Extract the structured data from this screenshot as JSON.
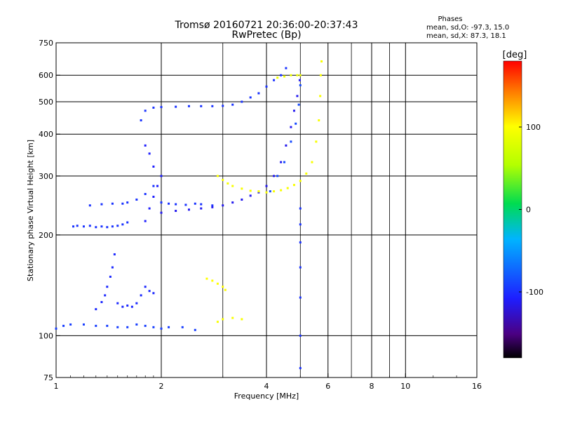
{
  "chart_data": {
    "type": "scatter",
    "title": "Tromsø 20160721 20:36:00-20:37:43",
    "subtitle": "RwPretec (Bp)",
    "xlabel": "Frequency [MHz]",
    "ylabel": "Stationary phase Virtual Height [km]",
    "x_scale": "log",
    "y_scale": "log",
    "xlim": [
      1,
      16
    ],
    "ylim": [
      75,
      750
    ],
    "x_ticks": [
      1,
      2,
      4,
      6,
      8,
      10,
      16
    ],
    "x_tick_labels": [
      "1",
      "2",
      "4",
      "6",
      "8",
      "10",
      "16"
    ],
    "x_minor_lines": [
      3,
      5,
      7,
      9
    ],
    "y_ticks": [
      75,
      100,
      200,
      300,
      400,
      500,
      600,
      750
    ],
    "y_tick_labels": [
      "75",
      "100",
      "200",
      "300",
      "400",
      "500",
      "600",
      "750"
    ],
    "grid": true,
    "legend": {
      "title": "Phases",
      "lines": [
        "mean, sd,O: -97.3, 15.0",
        "mean, sd,X:  87.3, 18.1"
      ]
    },
    "colorbar": {
      "label": "[deg]",
      "min": -180,
      "max": 180,
      "ticks": [
        100,
        0,
        -100
      ],
      "tick_labels": [
        "100",
        "0",
        "-100"
      ]
    },
    "series": [
      {
        "name": "O",
        "mean_phase": -97.3,
        "sd_phase": 15.0,
        "traces": [
          {
            "phase": -95,
            "points": [
              [
                1.0,
                105
              ],
              [
                1.05,
                107
              ],
              [
                1.1,
                108
              ],
              [
                1.2,
                108
              ],
              [
                1.3,
                107
              ],
              [
                1.4,
                107
              ],
              [
                1.5,
                106
              ],
              [
                1.6,
                106
              ],
              [
                1.7,
                108
              ],
              [
                1.8,
                107
              ],
              [
                1.9,
                106
              ],
              [
                2.0,
                105
              ],
              [
                2.1,
                106
              ],
              [
                2.3,
                106
              ],
              [
                2.5,
                104
              ]
            ]
          },
          {
            "phase": -100,
            "points": [
              [
                1.12,
                212
              ],
              [
                1.15,
                213
              ],
              [
                1.2,
                212
              ],
              [
                1.25,
                213
              ],
              [
                1.3,
                211
              ],
              [
                1.35,
                212
              ],
              [
                1.4,
                211
              ],
              [
                1.45,
                212
              ],
              [
                1.5,
                213
              ],
              [
                1.55,
                215
              ],
              [
                1.6,
                218
              ]
            ]
          },
          {
            "phase": -105,
            "points": [
              [
                1.3,
                120
              ],
              [
                1.35,
                126
              ],
              [
                1.38,
                132
              ],
              [
                1.4,
                140
              ],
              [
                1.43,
                150
              ],
              [
                1.45,
                160
              ],
              [
                1.47,
                175
              ],
              [
                1.5,
                125
              ],
              [
                1.55,
                122
              ],
              [
                1.6,
                123
              ],
              [
                1.65,
                122
              ],
              [
                1.7,
                125
              ],
              [
                1.75,
                132
              ],
              [
                1.8,
                140
              ],
              [
                1.85,
                136
              ],
              [
                1.9,
                134
              ]
            ]
          },
          {
            "phase": -100,
            "points": [
              [
                1.25,
                245
              ],
              [
                1.35,
                247
              ],
              [
                1.45,
                248
              ],
              [
                1.55,
                248
              ],
              [
                1.6,
                250
              ],
              [
                1.7,
                255
              ],
              [
                1.8,
                265
              ],
              [
                1.9,
                280
              ],
              [
                2.0,
                250
              ],
              [
                2.1,
                248
              ],
              [
                2.2,
                247
              ],
              [
                2.35,
                246
              ],
              [
                2.5,
                248
              ],
              [
                2.6,
                247
              ],
              [
                2.8,
                245
              ]
            ]
          },
          {
            "phase": -110,
            "points": [
              [
                1.8,
                220
              ],
              [
                1.85,
                240
              ],
              [
                1.9,
                260
              ],
              [
                1.95,
                280
              ],
              [
                2.0,
                300
              ],
              [
                1.9,
                320
              ],
              [
                1.85,
                350
              ],
              [
                1.8,
                370
              ]
            ]
          },
          {
            "phase": -100,
            "points": [
              [
                1.75,
                440
              ],
              [
                1.8,
                470
              ],
              [
                1.9,
                480
              ],
              [
                2.0,
                482
              ],
              [
                2.2,
                483
              ],
              [
                2.4,
                485
              ],
              [
                2.6,
                485
              ],
              [
                2.8,
                485
              ],
              [
                3.0,
                486
              ],
              [
                3.2,
                490
              ],
              [
                3.4,
                500
              ],
              [
                3.6,
                515
              ],
              [
                3.8,
                530
              ],
              [
                4.0,
                555
              ],
              [
                4.2,
                580
              ],
              [
                4.4,
                600
              ],
              [
                4.55,
                630
              ]
            ]
          },
          {
            "phase": -115,
            "points": [
              [
                2.0,
                233
              ],
              [
                2.2,
                236
              ],
              [
                2.4,
                238
              ],
              [
                2.6,
                240
              ],
              [
                2.8,
                242
              ],
              [
                3.0,
                245
              ],
              [
                3.2,
                250
              ],
              [
                3.4,
                255
              ],
              [
                3.6,
                262
              ],
              [
                3.8,
                268
              ],
              [
                4.0,
                280
              ],
              [
                4.2,
                300
              ],
              [
                4.4,
                330
              ],
              [
                4.55,
                370
              ],
              [
                4.7,
                420
              ],
              [
                4.8,
                470
              ],
              [
                4.9,
                520
              ],
              [
                4.98,
                580
              ]
            ]
          },
          {
            "phase": -90,
            "points": [
              [
                4.1,
                270
              ],
              [
                4.3,
                300
              ],
              [
                4.5,
                330
              ],
              [
                4.7,
                380
              ],
              [
                4.85,
                430
              ],
              [
                4.95,
                490
              ],
              [
                5.0,
                560
              ]
            ]
          },
          {
            "phase": -100,
            "points": [
              [
                5.0,
                80
              ],
              [
                5.0,
                100
              ],
              [
                5.0,
                130
              ],
              [
                5.0,
                160
              ],
              [
                5.0,
                190
              ],
              [
                5.0,
                215
              ],
              [
                5.0,
                240
              ]
            ]
          }
        ]
      },
      {
        "name": "X",
        "mean_phase": 87.3,
        "sd_phase": 18.1,
        "traces": [
          {
            "phase": 95,
            "points": [
              [
                2.9,
                300
              ],
              [
                3.0,
                292
              ],
              [
                3.1,
                285
              ],
              [
                3.2,
                280
              ],
              [
                3.4,
                275
              ],
              [
                3.6,
                271
              ],
              [
                3.8,
                270
              ],
              [
                4.0,
                268
              ],
              [
                4.2,
                270
              ],
              [
                4.4,
                272
              ],
              [
                4.6,
                276
              ],
              [
                4.8,
                282
              ],
              [
                5.0,
                290
              ],
              [
                5.2,
                305
              ],
              [
                5.4,
                330
              ],
              [
                5.55,
                380
              ],
              [
                5.65,
                440
              ],
              [
                5.7,
                520
              ],
              [
                5.72,
                600
              ],
              [
                5.75,
                660
              ]
            ]
          },
          {
            "phase": 100,
            "points": [
              [
                2.7,
                148
              ],
              [
                2.8,
                146
              ],
              [
                2.9,
                143
              ],
              [
                3.0,
                140
              ],
              [
                3.05,
                137
              ]
            ]
          },
          {
            "phase": 95,
            "points": [
              [
                2.9,
                110
              ],
              [
                3.0,
                112
              ],
              [
                3.2,
                113
              ],
              [
                3.4,
                112
              ]
            ]
          },
          {
            "phase": 90,
            "points": [
              [
                4.3,
                590
              ],
              [
                4.5,
                595
              ],
              [
                4.7,
                600
              ],
              [
                4.9,
                600
              ],
              [
                5.0,
                600
              ]
            ]
          }
        ]
      }
    ]
  }
}
